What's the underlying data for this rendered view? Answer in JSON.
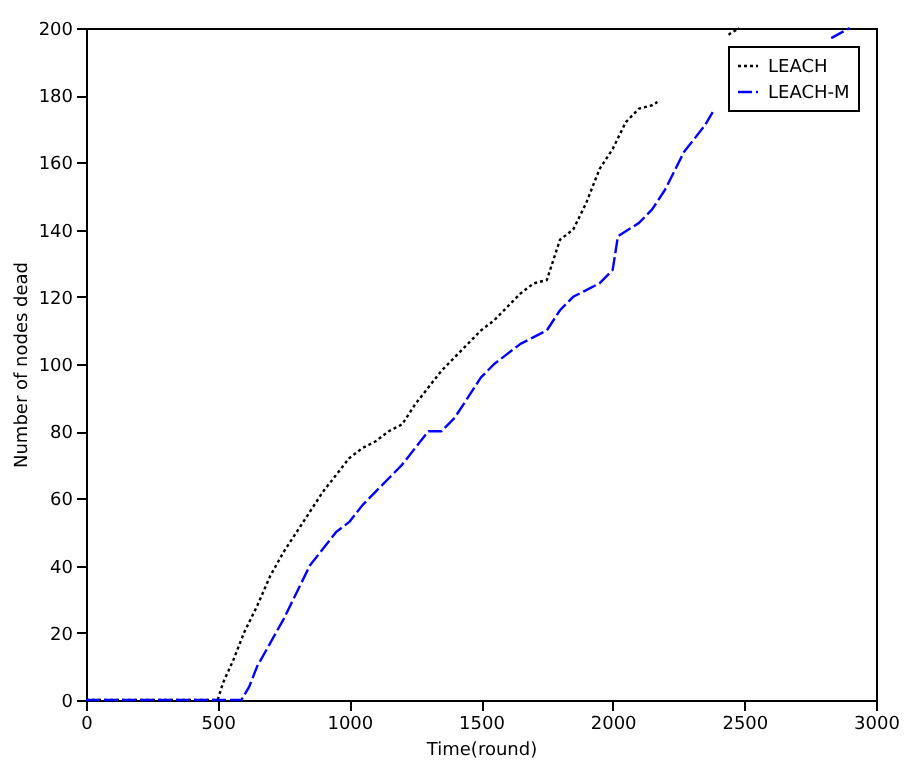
{
  "chart_data": {
    "type": "line",
    "xlabel": "Time(round)",
    "ylabel": "Number of nodes dead",
    "xlim": [
      0,
      3000
    ],
    "xticks": [
      0,
      500,
      1000,
      1500,
      2000,
      2500,
      3000
    ],
    "ylim": [
      0,
      200
    ],
    "yticks": [
      0,
      20,
      40,
      60,
      80,
      100,
      120,
      140,
      160,
      180,
      200
    ],
    "grid": false,
    "legend": "top right",
    "marker": "none",
    "series": [
      {
        "name": "LEACH",
        "color": "#000000",
        "line_style": "dotted",
        "x": [
          0,
          500,
          520,
          560,
          600,
          650,
          700,
          750,
          800,
          850,
          900,
          950,
          1000,
          1050,
          1100,
          1150,
          1200,
          1250,
          1300,
          1350,
          1400,
          1450,
          1500,
          1550,
          1600,
          1650,
          1700,
          1750,
          1800,
          1850,
          1900,
          1950,
          2000,
          2050,
          2100,
          2150,
          2170,
          2300,
          2440,
          2480
        ],
        "values": [
          0,
          0,
          5,
          12,
          20,
          28,
          37,
          44,
          50,
          56,
          62,
          67,
          72,
          75,
          77,
          80,
          82,
          88,
          93,
          98,
          102,
          106,
          110,
          113,
          117,
          121,
          124,
          125,
          137,
          140,
          148,
          158,
          164,
          172,
          176,
          177,
          178,
          null,
          198,
          200
        ]
      },
      {
        "name": "LEACH-M",
        "color": "#0000ff",
        "line_style": "dashed",
        "x": [
          0,
          590,
          620,
          650,
          700,
          750,
          800,
          850,
          900,
          950,
          1000,
          1050,
          1100,
          1150,
          1200,
          1250,
          1300,
          1350,
          1400,
          1450,
          1500,
          1550,
          1600,
          1650,
          1700,
          1750,
          1800,
          1850,
          1900,
          1950,
          2000,
          2020,
          2100,
          2150,
          2200,
          2270,
          2350,
          2380,
          2600,
          2830,
          2900
        ],
        "values": [
          0,
          0,
          4,
          10,
          17,
          24,
          32,
          40,
          45,
          50,
          53,
          58,
          62,
          66,
          70,
          75,
          80,
          80,
          84,
          90,
          96,
          100,
          103,
          106,
          108,
          110,
          116,
          120,
          122,
          124,
          128,
          138,
          142,
          146,
          152,
          163,
          171,
          175,
          null,
          197,
          200
        ]
      }
    ]
  }
}
